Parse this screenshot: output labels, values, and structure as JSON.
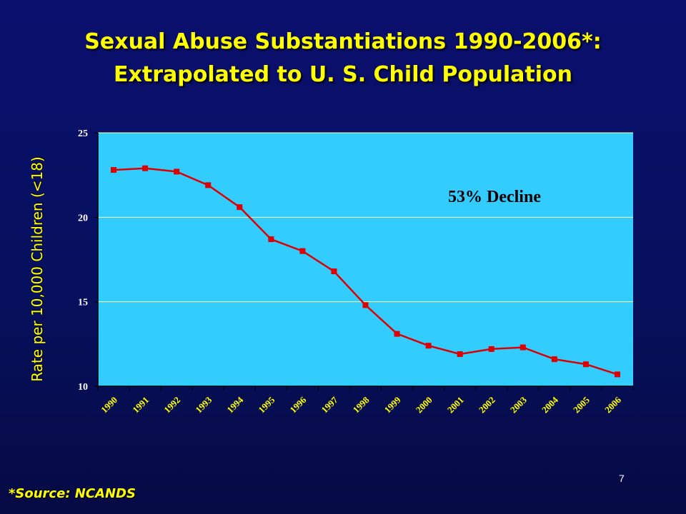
{
  "title_line1": "Sexual Abuse Substantiations 1990-2006*:",
  "title_line2": "Extrapolated to U. S. Child Population",
  "footnote": "*Source: NCANDS",
  "slide_number": "7",
  "colors": {
    "background": "#07105e",
    "plot_area": "#33ccff",
    "series_line": "#dd0000",
    "title_text": "#ffff00",
    "gridline": "#ffff99"
  },
  "chart_data": {
    "type": "line",
    "title": "Sexual Abuse Substantiations 1990-2006*: Extrapolated to U. S. Child Population",
    "xlabel": "",
    "ylabel": "Rate per 10,000 Children (<18)",
    "categories": [
      "1990",
      "1991",
      "1992",
      "1993",
      "1994",
      "1995",
      "1996",
      "1997",
      "1998",
      "1999",
      "2000",
      "2001",
      "2002",
      "2003",
      "2004",
      "2005",
      "2006"
    ],
    "series": [
      {
        "values": [
          22.8,
          22.9,
          22.7,
          21.9,
          20.6,
          18.7,
          18.0,
          16.8,
          14.8,
          13.1,
          12.4,
          11.9,
          12.2,
          12.3,
          11.6,
          11.3,
          10.7
        ]
      }
    ],
    "yticks": [
      10,
      15,
      20,
      25
    ],
    "ylim": [
      10,
      25
    ],
    "grid": true,
    "annotation": "53% Decline"
  }
}
